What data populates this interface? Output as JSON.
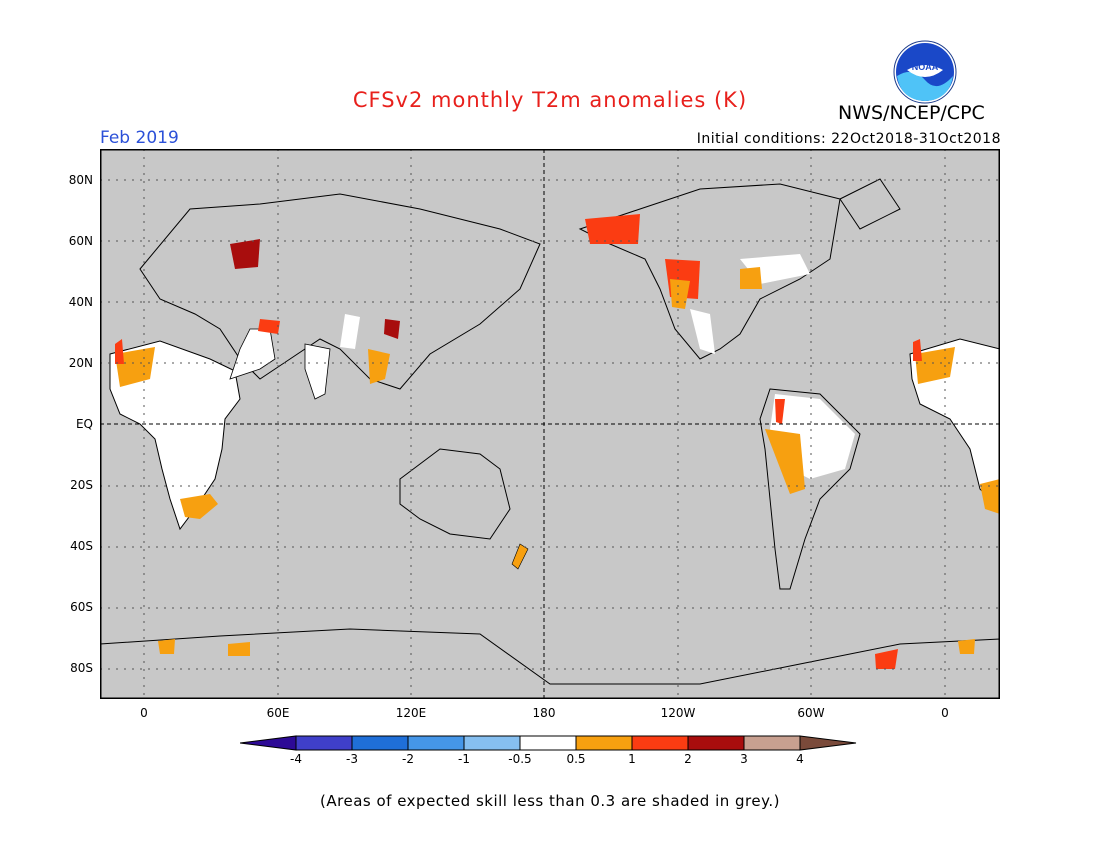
{
  "title": "CFSv2 monthly T2m anomalies (K)",
  "agency": "NWS/NCEP/CPC",
  "logo_text": "NOAA",
  "month": "Feb 2019",
  "initial_conditions": "Initial conditions: 22Oct2018-31Oct2018",
  "footnote": "(Areas of expected skill less than 0.3 are shaded in grey.)",
  "lat_labels": [
    "80N",
    "60N",
    "40N",
    "20N",
    "EQ",
    "20S",
    "40S",
    "60S",
    "80S"
  ],
  "lon_labels": [
    "0",
    "60E",
    "120E",
    "180",
    "120W",
    "60W",
    "0"
  ],
  "colorbar": {
    "labels": [
      "-4",
      "-3",
      "-2",
      "-1",
      "-0.5",
      "0.5",
      "1",
      "2",
      "3",
      "4"
    ],
    "colors": [
      "#2d0a96",
      "#3f3fc9",
      "#1f6fd8",
      "#4596e8",
      "#86bff0",
      "#ffffff",
      "#f7a010",
      "#fb3c12",
      "#a80d0d",
      "#c8a090",
      "#7a4a3a"
    ]
  },
  "map": {
    "ocean_color": "#c8c8c8",
    "land_no_anomaly": "#ffffff"
  }
}
